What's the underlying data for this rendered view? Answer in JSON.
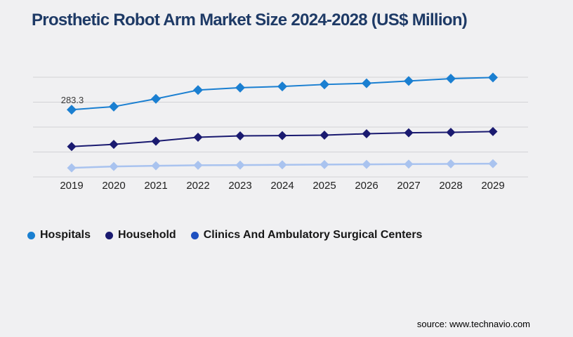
{
  "title": "Prosthetic Robot Arm Market Size 2024-2028 (US$ Million)",
  "source": "source: www.technavio.com",
  "colors": {
    "background": "#f0f0f2",
    "gridline": "#d2d2d6",
    "title": "#1e3a66",
    "axis_label": "#1f1f1f",
    "annotation": "#3c3c3c",
    "legend_text": "#161616",
    "source_text": "#000000"
  },
  "chart_data": {
    "type": "line",
    "title": "Prosthetic Robot Arm Market Size 2024-2028 (US$ Million)",
    "categories": [
      "2019",
      "2020",
      "2021",
      "2022",
      "2023",
      "2024",
      "2025",
      "2026",
      "2027",
      "2028",
      "2029"
    ],
    "series": [
      {
        "name": "Hospitals",
        "color": "#1a7fd1",
        "legend_color": "#1a7fd1",
        "marker": "diamond",
        "marker_size": 7,
        "line_width": 2,
        "values": [
          283.3,
          296,
          329,
          366,
          376,
          381,
          389.5,
          394.5,
          404,
          414,
          419
        ]
      },
      {
        "name": "Household",
        "color": "#1a1a70",
        "legend_color": "#1a1a70",
        "marker": "diamond",
        "marker_size": 6.5,
        "line_width": 2,
        "values": [
          128,
          137,
          150.5,
          167,
          173,
          174,
          176,
          182,
          186,
          188,
          191
        ]
      },
      {
        "name": "Clinics And Ambulatory Surgical Centers",
        "color": "#a9c3ef",
        "legend_color": "#1e50c0",
        "marker": "diamond",
        "marker_size": 6.5,
        "line_width": 2.5,
        "values": [
          38,
          44,
          47,
          49,
          50,
          51,
          52,
          53,
          54,
          55,
          56
        ]
      }
    ],
    "annotation": {
      "series_index": 0,
      "point_index": 0,
      "text": "283.3"
    },
    "xlabel": "",
    "ylabel": "",
    "ylim": [
      0,
      420
    ],
    "grid": "horizontal",
    "legend_position": "bottom-left",
    "values_note": "Only the 2019 Hospitals point is labeled (283.3); all other values estimated from gridlines."
  }
}
